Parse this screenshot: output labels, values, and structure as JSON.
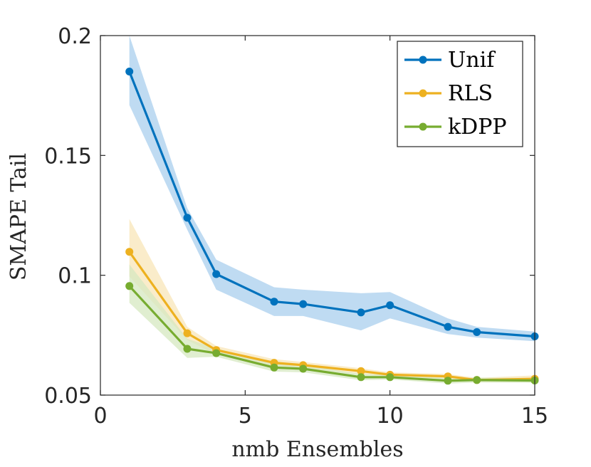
{
  "chart_data": {
    "type": "line",
    "title": "",
    "xlabel": "nmb Ensembles",
    "ylabel": "SMAPE Tail",
    "xlim": [
      0,
      15
    ],
    "ylim": [
      0.05,
      0.2
    ],
    "xticks": [
      0,
      5,
      10,
      15
    ],
    "xtick_labels": [
      "0",
      "5",
      "10",
      "15"
    ],
    "yticks": [
      0.05,
      0.1,
      0.15,
      0.2
    ],
    "ytick_labels": [
      "0.05",
      "0.1",
      "0.15",
      "0.2"
    ],
    "grid": false,
    "legend_position": "top-right",
    "series": [
      {
        "name": "Unif",
        "color": "#0072BD",
        "band_color": "#a9cfee",
        "x": [
          1,
          3,
          4,
          6,
          7,
          9,
          10,
          12,
          13,
          15
        ],
        "values": [
          0.185,
          0.124,
          0.1005,
          0.089,
          0.088,
          0.0845,
          0.0875,
          0.0785,
          0.0763,
          0.0745
        ],
        "upper": [
          0.2,
          0.128,
          0.1065,
          0.095,
          0.094,
          0.0925,
          0.093,
          0.082,
          0.0785,
          0.0765
        ],
        "lower": [
          0.171,
          0.119,
          0.094,
          0.083,
          0.083,
          0.077,
          0.082,
          0.0755,
          0.074,
          0.0725
        ]
      },
      {
        "name": "RLS",
        "color": "#EDB120",
        "band_color": "#f8e6b8",
        "x": [
          1,
          3,
          4,
          6,
          7,
          9,
          10,
          12,
          13,
          15
        ],
        "values": [
          0.1098,
          0.0758,
          0.0688,
          0.0635,
          0.0625,
          0.06,
          0.0585,
          0.0578,
          0.0563,
          0.0568
        ],
        "upper": [
          0.1235,
          0.0785,
          0.0705,
          0.065,
          0.0638,
          0.0612,
          0.0595,
          0.0588,
          0.0572,
          0.0582
        ],
        "lower": [
          0.0995,
          0.073,
          0.0668,
          0.062,
          0.0612,
          0.0588,
          0.0575,
          0.0568,
          0.0555,
          0.0556
        ]
      },
      {
        "name": "kDPP",
        "color": "#77AC30",
        "band_color": "#d6e8c0",
        "x": [
          1,
          3,
          4,
          6,
          7,
          9,
          10,
          12,
          13,
          15
        ],
        "values": [
          0.0955,
          0.0693,
          0.0675,
          0.0615,
          0.061,
          0.0575,
          0.0575,
          0.056,
          0.0563,
          0.0561
        ],
        "upper": [
          0.1045,
          0.0735,
          0.0695,
          0.0632,
          0.0625,
          0.0588,
          0.0585,
          0.0572,
          0.0573,
          0.0571
        ],
        "lower": [
          0.0885,
          0.0655,
          0.066,
          0.0598,
          0.0595,
          0.0562,
          0.0565,
          0.0548,
          0.0553,
          0.0551
        ]
      }
    ]
  }
}
